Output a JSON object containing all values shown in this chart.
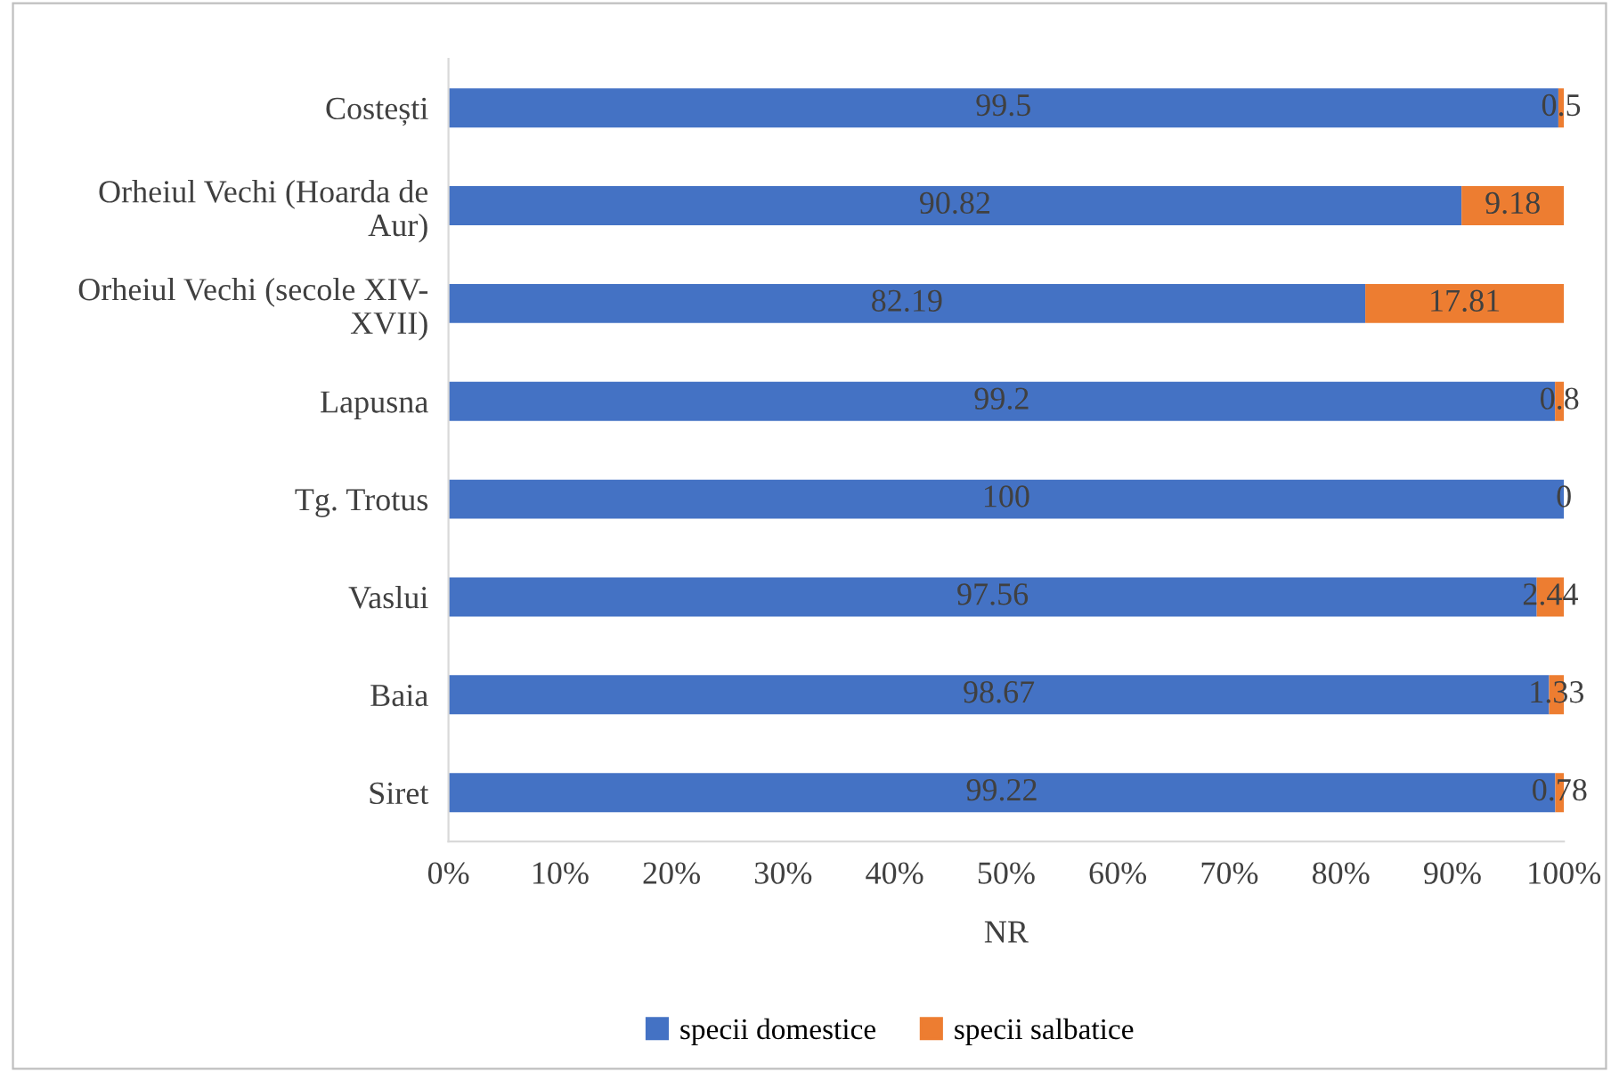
{
  "chart_data": {
    "type": "bar",
    "orientation": "horizontal",
    "stacked": true,
    "xlabel": "NR",
    "categories": [
      "Costești",
      "Orheiul Vechi (Hoarda de\nAur)",
      "Orheiul Vechi (secole XIV-\nXVII)",
      "Lapusna",
      "Tg. Trotus",
      "Vaslui",
      "Baia",
      "Siret"
    ],
    "series": [
      {
        "name": "specii domestice",
        "color": "#4472c4",
        "values": [
          99.5,
          90.82,
          82.19,
          99.2,
          100,
          97.56,
          98.67,
          99.22
        ]
      },
      {
        "name": "specii salbatice",
        "color": "#ed7d31",
        "values": [
          0.5,
          9.18,
          17.81,
          0.8,
          0,
          2.44,
          1.33,
          0.78
        ]
      }
    ],
    "xlim": [
      0,
      100
    ],
    "xticks": [
      {
        "value": 0,
        "label": "0%"
      },
      {
        "value": 10,
        "label": "10%"
      },
      {
        "value": 20,
        "label": "20%"
      },
      {
        "value": 30,
        "label": "30%"
      },
      {
        "value": 40,
        "label": "40%"
      },
      {
        "value": 50,
        "label": "50%"
      },
      {
        "value": 60,
        "label": "60%"
      },
      {
        "value": 70,
        "label": "70%"
      },
      {
        "value": 80,
        "label": "80%"
      },
      {
        "value": 90,
        "label": "90%"
      },
      {
        "value": 100,
        "label": "100%"
      }
    ],
    "data_labels": true,
    "grid": false,
    "legend": "bottom"
  }
}
